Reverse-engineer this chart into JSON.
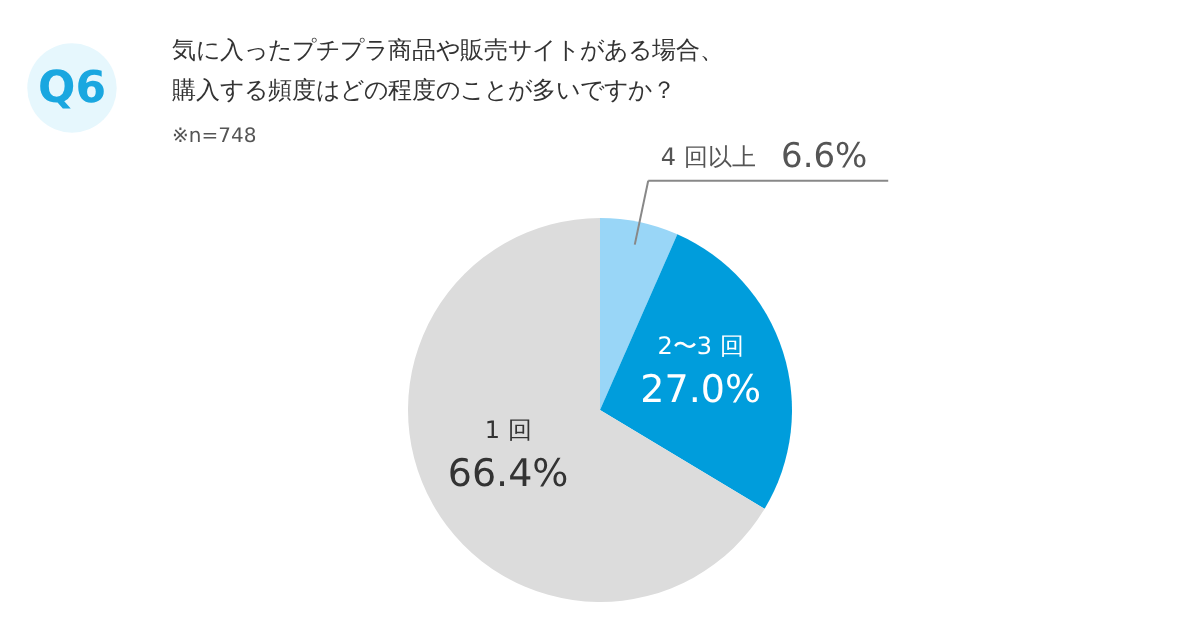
{
  "chart_data": {
    "type": "pie",
    "title": "気に入ったプチプラ商品や販売サイトがある場合、購入する頻度はどの程度のことが多いですか？",
    "subtitle": "※n=748",
    "annotations": [
      "Q6"
    ],
    "categories": [
      "4 回以上",
      "2〜3 回",
      "1 回"
    ],
    "values": [
      6.6,
      27.0,
      66.4
    ],
    "value_labels": [
      "6.6%",
      "27.0%",
      "66.4%"
    ],
    "colors": [
      "#99d6f7",
      "#009ddc",
      "#dcdcdc"
    ]
  }
}
